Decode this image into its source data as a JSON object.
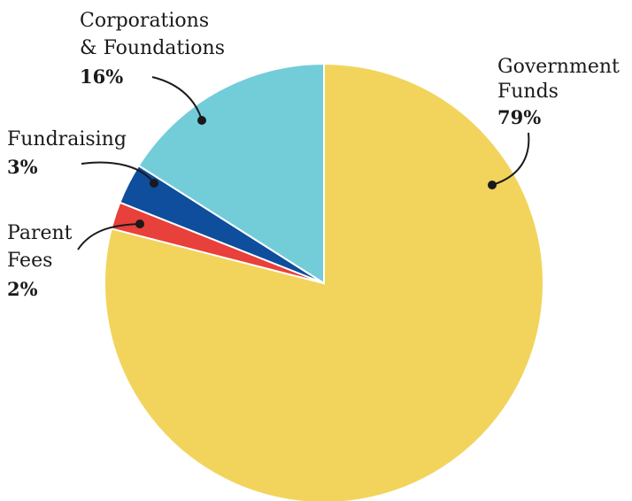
{
  "chart_data": {
    "type": "pie",
    "start_angle_deg": 0,
    "direction": "clockwise",
    "slices": [
      {
        "name_lines": [
          "Government",
          "Funds"
        ],
        "value": 79,
        "pct_label": "79%",
        "color": "#F2D45C"
      },
      {
        "name_lines": [
          "Parent",
          "Fees"
        ],
        "value": 2,
        "pct_label": "2%",
        "color": "#E8403A"
      },
      {
        "name_lines": [
          "Fundraising"
        ],
        "value": 3,
        "pct_label": "3%",
        "color": "#0E4E9C"
      },
      {
        "name_lines": [
          "Corporations",
          "& Foundations"
        ],
        "value": 16,
        "pct_label": "16%",
        "color": "#72CDD9"
      }
    ]
  }
}
